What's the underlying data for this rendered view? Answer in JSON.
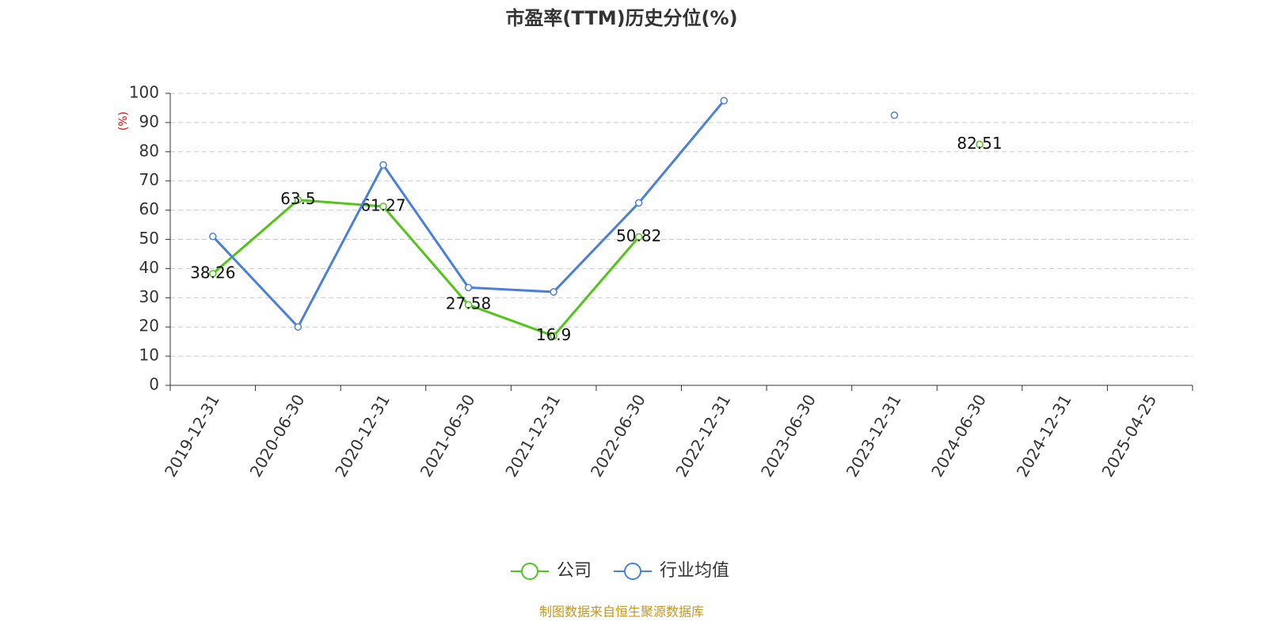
{
  "chart_data": {
    "type": "line",
    "title": "市盈率(TTM)历史分位(%)",
    "ylabel": "(%)",
    "categories": [
      "2019-12-31",
      "2020-06-30",
      "2020-12-31",
      "2021-06-30",
      "2021-12-31",
      "2022-06-30",
      "2022-12-31",
      "2023-06-30",
      "2023-12-31",
      "2024-06-30",
      "2024-12-31",
      "2025-04-25"
    ],
    "series": [
      {
        "name": "公司",
        "color": "#52c41a",
        "values": [
          38.26,
          63.5,
          61.27,
          27.58,
          16.9,
          50.82,
          null,
          null,
          null,
          82.51,
          null,
          null
        ],
        "data_labels": true
      },
      {
        "name": "行业均值",
        "color": "#4a7fdc",
        "values": [
          51,
          20,
          75.5,
          33.5,
          32,
          62.5,
          97.5,
          null,
          92.5,
          null,
          null,
          null
        ],
        "data_labels": false
      }
    ],
    "ylim": [
      0,
      100
    ],
    "yticks": [
      0,
      10,
      20,
      30,
      40,
      50,
      60,
      70,
      80,
      90,
      100
    ],
    "grid": true,
    "legend": "bottom",
    "source": "制图数据来自恒生聚源数据库"
  }
}
